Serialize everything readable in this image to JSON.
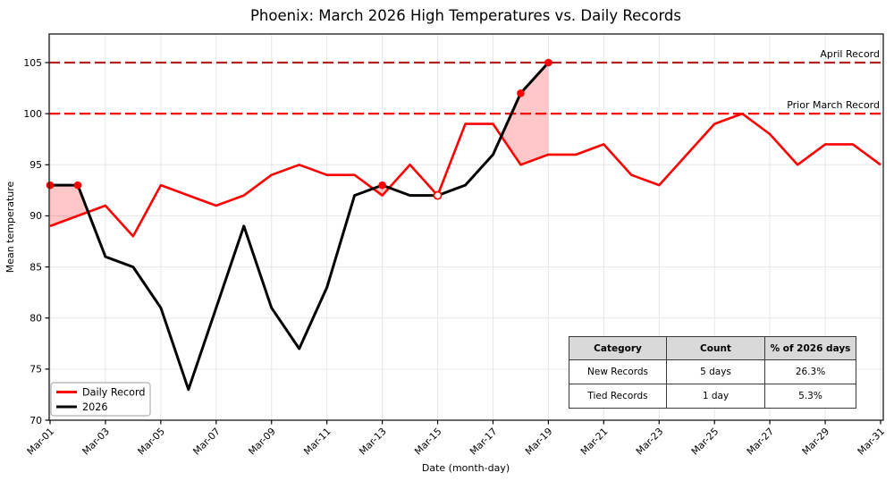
{
  "chart_data": {
    "type": "line",
    "title": "Phoenix: March 2026 High Temperatures vs. Daily Records",
    "xlabel": "Date (month-day)",
    "ylabel": "Mean temperature",
    "x_ticks": {
      "days": [
        1,
        3,
        5,
        7,
        9,
        11,
        13,
        15,
        17,
        19,
        21,
        23,
        25,
        27,
        29,
        31
      ],
      "labels": [
        "Mar-01",
        "Mar-03",
        "Mar-05",
        "Mar-07",
        "Mar-09",
        "Mar-11",
        "Mar-13",
        "Mar-15",
        "Mar-17",
        "Mar-19",
        "Mar-21",
        "Mar-23",
        "Mar-25",
        "Mar-27",
        "Mar-29",
        "Mar-31"
      ]
    },
    "y_ticks": [
      70,
      75,
      80,
      85,
      90,
      95,
      100,
      105
    ],
    "xlim": [
      1,
      31
    ],
    "ylim": [
      70,
      107.8
    ],
    "grid": true,
    "grid_color": "#e6e6e6",
    "legend_position": "lower-left",
    "series": [
      {
        "name": "Daily Record",
        "color": "#ff0000",
        "line_width": 2.6,
        "days": [
          1,
          2,
          3,
          4,
          5,
          6,
          7,
          8,
          9,
          10,
          11,
          12,
          13,
          14,
          15,
          16,
          17,
          18,
          19,
          20,
          21,
          22,
          23,
          24,
          25,
          26,
          27,
          28,
          29,
          30,
          31
        ],
        "values": [
          89,
          90,
          91,
          88,
          93,
          92,
          91,
          92,
          94,
          95,
          94,
          94,
          92,
          95,
          92,
          99,
          99,
          95,
          96,
          96,
          97,
          94,
          93,
          96,
          99,
          100,
          98,
          95,
          97,
          97,
          95
        ]
      },
      {
        "name": "2026",
        "color": "#000000",
        "line_width": 3,
        "days": [
          1,
          2,
          3,
          4,
          5,
          6,
          7,
          8,
          9,
          10,
          11,
          12,
          13,
          14,
          15,
          16,
          17,
          18,
          19
        ],
        "values": [
          93,
          93,
          86,
          85,
          81,
          73,
          81,
          89,
          81,
          77,
          83,
          92,
          93,
          92,
          92,
          93,
          96,
          102,
          105
        ]
      }
    ],
    "reference_lines": [
      {
        "label": "April Record",
        "value": 105,
        "color": "#b22222"
      },
      {
        "label": "Prior March Record",
        "value": 100,
        "color": "#ff0000"
      }
    ],
    "markers": {
      "new_records": {
        "style": "filled",
        "color": "#ff0000",
        "days": [
          1,
          2,
          13,
          18,
          19
        ],
        "values": [
          93,
          93,
          93,
          102,
          105
        ]
      },
      "tied_records": {
        "style": "open",
        "color": "#ff0000",
        "days": [
          15
        ],
        "values": [
          92
        ]
      }
    },
    "fill_between": {
      "above_series": "2026",
      "below_series": "Daily Record",
      "color": "#ff0000",
      "opacity": 0.22
    }
  },
  "legend": {
    "items": [
      {
        "label": "Daily Record",
        "color": "#ff0000"
      },
      {
        "label": "2026",
        "color": "#000000"
      }
    ]
  },
  "summary_table": {
    "headers": [
      "Category",
      "Count",
      "% of 2026 days"
    ],
    "rows": [
      [
        "New Records",
        "5 days",
        "26.3%"
      ],
      [
        "Tied Records",
        "1 day",
        "5.3%"
      ]
    ]
  }
}
